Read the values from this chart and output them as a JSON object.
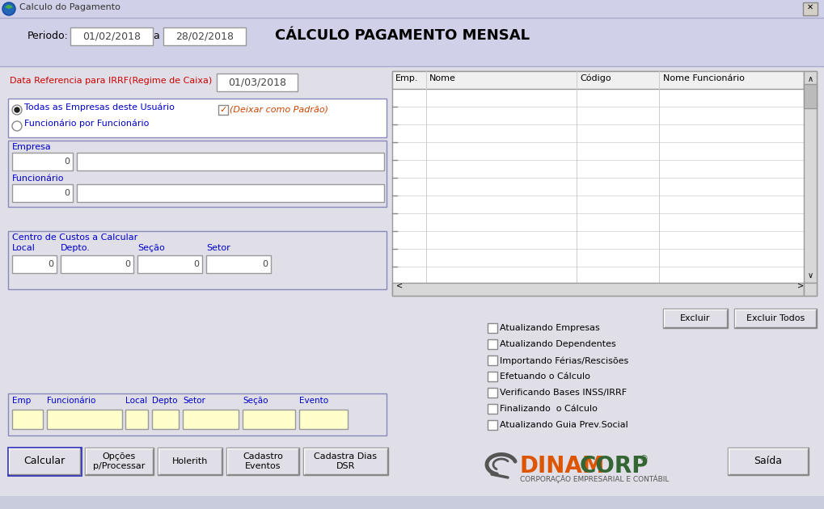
{
  "title_bar": "Calculo do Pagamento",
  "title_bar_bg": "#d0d0e8",
  "main_bg": "#e0dfe8",
  "header_bg": "#d0d0e8",
  "header_title": "CÁLCULO PAGAMENTO MENSAL",
  "periodo_label": "Periodo:",
  "periodo_start": "01/02/2018",
  "periodo_end": "28/02/2018",
  "data_ref_label": "Data Referencia para IRRF(Regime de Caixa)",
  "data_ref_value": "01/03/2018",
  "radio1": "Todas as Empresas deste Usuário",
  "radio2": "Funcionário por Funcionário",
  "checkbox_deixar": "(Deixar como Padrão)",
  "empresa_label": "Empresa",
  "funcionario_label": "Funcionário",
  "centro_label": "Centro de Custos a Calcular",
  "col_local": "Local",
  "col_depto": "Depto.",
  "col_secao": "Seção",
  "col_setor": "Setor",
  "table_headers": [
    "Emp.",
    "Nome",
    "Código",
    "Nome Funcionário"
  ],
  "checkboxes": [
    "Atualizando Empresas",
    "Atualizando Dependentes",
    "Importando Férias/Rescisões",
    "Efetuando o Cálculo",
    "Verificando Bases INSS/IRRF",
    "Finalizando  o Cálculo",
    "Atualizando Guia Prev.Social"
  ],
  "buttons_top_right": [
    "Excluir",
    "Excluir Todos"
  ],
  "bottom_labels": [
    "Emp",
    "Funcionário",
    "Local",
    "Depto",
    "Setor",
    "Seção",
    "Evento"
  ],
  "dinamcorp_sub": "CORPORAÇÃO EMPRESARIAL E CONTÁBIL",
  "field_bg": "#ffffff",
  "input_bg_yellow": "#ffffcc",
  "blue_label": "#0000cc",
  "red_label": "#cc0000",
  "orange_text": "#cc4400",
  "border_color": "#808080",
  "button_bg": "#e0dfe8",
  "table_border": "#999999",
  "frame_border_color": "#8888bb",
  "radio_frame_color": "#8888bb",
  "window_outer": "#c0c0c0",
  "title_icon_color": "#226622",
  "close_btn_bg": "#d4d0c8"
}
